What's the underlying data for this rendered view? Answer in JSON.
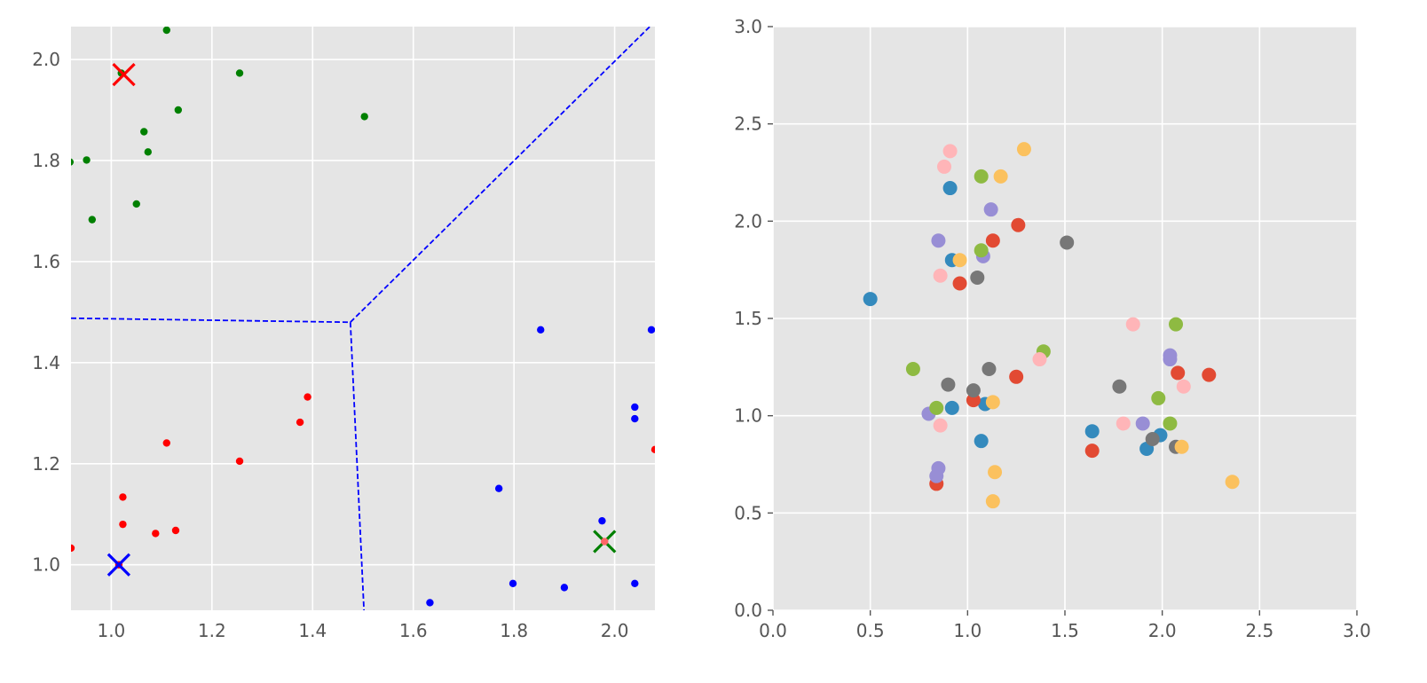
{
  "chart_data": [
    {
      "type": "scatter",
      "title": "",
      "xlabel": "",
      "ylabel": "",
      "xlim": [
        0.92,
        2.08
      ],
      "ylim": [
        0.91,
        2.065
      ],
      "xticks": [
        1.0,
        1.2,
        1.4,
        1.6,
        1.8,
        2.0
      ],
      "xtick_labels": [
        "1.0",
        "1.2",
        "1.4",
        "1.6",
        "1.8",
        "2.0"
      ],
      "yticks": [
        1.0,
        1.2,
        1.4,
        1.6,
        1.8,
        2.0
      ],
      "ytick_labels": [
        "1.0",
        "1.2",
        "1.4",
        "1.6",
        "1.8",
        "2.0"
      ],
      "grid": true,
      "colors": {
        "background": "#e5e5e5",
        "grid": "#ffffff",
        "boundary": "#0000ff"
      },
      "series": [
        {
          "color": "#008000",
          "marker": "dot",
          "points": [
            [
              1.11,
              2.058
            ],
            [
              1.02,
              1.973
            ],
            [
              1.255,
              1.973
            ],
            [
              1.133,
              1.9
            ],
            [
              1.503,
              1.887
            ],
            [
              1.065,
              1.857
            ],
            [
              1.073,
              1.817
            ],
            [
              0.951,
              1.801
            ],
            [
              0.918,
              1.797
            ],
            [
              1.05,
              1.714
            ],
            [
              0.962,
              1.683
            ]
          ]
        },
        {
          "color": "#ff0000",
          "marker": "dot",
          "points": [
            [
              1.39,
              1.332
            ],
            [
              1.375,
              1.282
            ],
            [
              1.11,
              1.241
            ],
            [
              1.255,
              1.205
            ],
            [
              1.023,
              1.134
            ],
            [
              1.023,
              1.08
            ],
            [
              1.128,
              1.068
            ],
            [
              1.088,
              1.062
            ],
            [
              0.92,
              1.033
            ],
            [
              1.015,
              1.0
            ],
            [
              2.08,
              1.228
            ]
          ]
        },
        {
          "color": "#0000ff",
          "marker": "dot",
          "points": [
            [
              1.853,
              1.465
            ],
            [
              2.073,
              1.465
            ],
            [
              2.04,
              1.312
            ],
            [
              2.04,
              1.289
            ],
            [
              1.77,
              1.151
            ],
            [
              1.975,
              1.087
            ],
            [
              1.798,
              0.963
            ],
            [
              1.9,
              0.955
            ],
            [
              2.04,
              0.963
            ],
            [
              1.633,
              0.925
            ]
          ]
        },
        {
          "color": "#ff0000",
          "marker": "x",
          "points": [
            [
              1.025,
              1.97
            ]
          ]
        },
        {
          "color": "#0000ff",
          "marker": "x",
          "points": [
            [
              1.015,
              1.0
            ]
          ]
        },
        {
          "color": "#008000",
          "marker": "x",
          "points": [
            [
              1.98,
              1.046
            ]
          ]
        },
        {
          "color": "#ff6666",
          "marker": "dot",
          "points": [
            [
              1.98,
              1.046
            ]
          ]
        }
      ],
      "boundary_lines": [
        {
          "style": "dashed",
          "color": "#0000ff",
          "points": [
            [
              0.92,
              1.488
            ],
            [
              1.475,
              1.48
            ]
          ]
        },
        {
          "style": "dashed",
          "color": "#0000ff",
          "points": [
            [
              1.475,
              1.48
            ],
            [
              2.08,
              2.075
            ]
          ]
        },
        {
          "style": "dashed",
          "color": "#0000ff",
          "points": [
            [
              1.475,
              1.48
            ],
            [
              1.502,
              0.91
            ]
          ]
        }
      ]
    },
    {
      "type": "scatter",
      "title": "",
      "xlabel": "",
      "ylabel": "",
      "xlim": [
        0,
        3
      ],
      "ylim": [
        0,
        3
      ],
      "xticks": [
        0.0,
        0.5,
        1.0,
        1.5,
        2.0,
        2.5,
        3.0
      ],
      "xtick_labels": [
        "0.0",
        "0.5",
        "1.0",
        "1.5",
        "2.0",
        "2.5",
        "3.0"
      ],
      "yticks": [
        0.0,
        0.5,
        1.0,
        1.5,
        2.0,
        2.5,
        3.0
      ],
      "ytick_labels": [
        "0.0",
        "0.5",
        "1.0",
        "1.5",
        "2.0",
        "2.5",
        "3.0"
      ],
      "grid": true,
      "colors": {
        "background": "#e5e5e5",
        "grid": "#ffffff"
      },
      "series": [
        {
          "color": "#348abd",
          "points": [
            [
              0.5,
              1.6
            ],
            [
              0.91,
              2.17
            ],
            [
              0.92,
              1.8
            ],
            [
              0.92,
              1.04
            ],
            [
              1.07,
              0.87
            ],
            [
              1.09,
              1.06
            ],
            [
              1.64,
              0.92
            ],
            [
              1.92,
              0.83
            ],
            [
              1.99,
              0.9
            ]
          ]
        },
        {
          "color": "#e24a33",
          "points": [
            [
              0.96,
              1.68
            ],
            [
              1.26,
              1.98
            ],
            [
              1.13,
              1.9
            ],
            [
              1.25,
              1.2
            ],
            [
              1.03,
              1.08
            ],
            [
              0.84,
              0.65
            ],
            [
              1.64,
              0.82
            ],
            [
              2.08,
              1.22
            ],
            [
              2.24,
              1.21
            ]
          ]
        },
        {
          "color": "#988ed5",
          "points": [
            [
              0.85,
              1.9
            ],
            [
              1.12,
              2.06
            ],
            [
              1.08,
              1.82
            ],
            [
              0.8,
              1.01
            ],
            [
              0.85,
              0.73
            ],
            [
              0.84,
              0.69
            ],
            [
              1.9,
              0.96
            ],
            [
              2.04,
              1.31
            ],
            [
              2.04,
              1.29
            ]
          ]
        },
        {
          "color": "#777777",
          "points": [
            [
              1.51,
              1.89
            ],
            [
              1.05,
              1.71
            ],
            [
              1.11,
              1.24
            ],
            [
              0.9,
              1.16
            ],
            [
              1.03,
              1.13
            ],
            [
              1.78,
              1.15
            ],
            [
              1.95,
              0.88
            ],
            [
              2.07,
              0.84
            ]
          ]
        },
        {
          "color": "#fbc15e",
          "points": [
            [
              1.29,
              2.37
            ],
            [
              1.17,
              2.23
            ],
            [
              0.96,
              1.8
            ],
            [
              1.13,
              1.07
            ],
            [
              1.14,
              0.71
            ],
            [
              1.13,
              0.56
            ],
            [
              2.1,
              0.84
            ],
            [
              2.36,
              0.66
            ]
          ]
        },
        {
          "color": "#8eba42",
          "points": [
            [
              1.07,
              2.23
            ],
            [
              1.07,
              1.85
            ],
            [
              1.39,
              1.33
            ],
            [
              0.72,
              1.24
            ],
            [
              0.84,
              1.04
            ],
            [
              2.07,
              1.47
            ],
            [
              1.98,
              1.09
            ],
            [
              2.04,
              0.96
            ]
          ]
        },
        {
          "color": "#ffb5b8",
          "points": [
            [
              0.91,
              2.36
            ],
            [
              0.88,
              2.28
            ],
            [
              0.86,
              1.72
            ],
            [
              1.37,
              1.29
            ],
            [
              0.86,
              0.95
            ],
            [
              1.85,
              1.47
            ],
            [
              1.8,
              0.96
            ],
            [
              2.11,
              1.15
            ]
          ]
        }
      ]
    }
  ]
}
